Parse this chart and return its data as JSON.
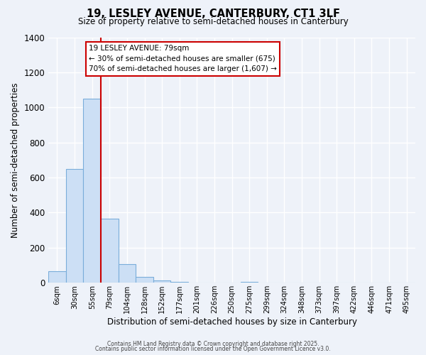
{
  "title": "19, LESLEY AVENUE, CANTERBURY, CT1 3LF",
  "subtitle": "Size of property relative to semi-detached houses in Canterbury",
  "xlabel": "Distribution of semi-detached houses by size in Canterbury",
  "ylabel": "Number of semi-detached properties",
  "bin_labels": [
    "6sqm",
    "30sqm",
    "55sqm",
    "79sqm",
    "104sqm",
    "128sqm",
    "152sqm",
    "177sqm",
    "201sqm",
    "226sqm",
    "250sqm",
    "275sqm",
    "299sqm",
    "324sqm",
    "348sqm",
    "373sqm",
    "397sqm",
    "422sqm",
    "446sqm",
    "471sqm",
    "495sqm"
  ],
  "bar_values": [
    65,
    650,
    1050,
    365,
    105,
    35,
    15,
    5,
    0,
    0,
    0,
    5,
    0,
    0,
    0,
    0,
    0,
    0,
    0,
    0,
    0
  ],
  "bar_color": "#ccdff5",
  "bar_edge_color": "#7aadda",
  "vline_index": 3,
  "vline_color": "#cc0000",
  "ylim": [
    0,
    1400
  ],
  "yticks": [
    0,
    200,
    400,
    600,
    800,
    1000,
    1200,
    1400
  ],
  "annotation_title": "19 LESLEY AVENUE: 79sqm",
  "annotation_line1": "← 30% of semi-detached houses are smaller (675)",
  "annotation_line2": "70% of semi-detached houses are larger (1,607) →",
  "annotation_box_facecolor": "#ffffff",
  "annotation_box_edgecolor": "#cc0000",
  "bg_color": "#eef2f9",
  "grid_color": "#d8dfe8",
  "footnote1": "Contains HM Land Registry data © Crown copyright and database right 2025.",
  "footnote2": "Contains public sector information licensed under the Open Government Licence v3.0."
}
